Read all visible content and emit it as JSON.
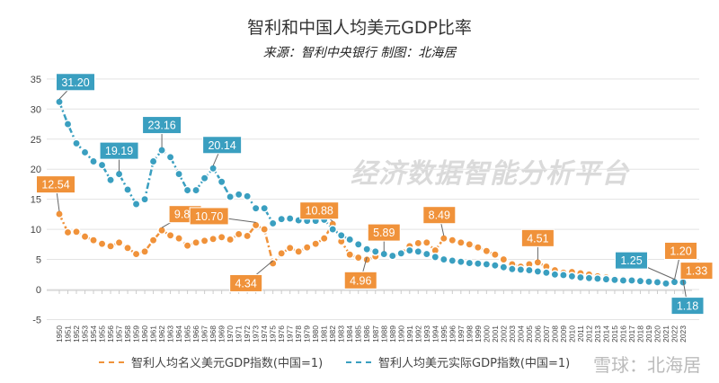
{
  "chart_data": {
    "type": "line",
    "title": "智利和中国人均美元GDP比率",
    "subtitle": "来源：智利中央银行 制图：北海居",
    "xlabel": "",
    "ylabel": "",
    "ylim": [
      -5,
      35
    ],
    "yticks": [
      -5,
      0,
      5,
      10,
      15,
      20,
      25,
      30,
      35
    ],
    "grid": true,
    "legend_position": "bottom",
    "x": [
      1950,
      1951,
      1952,
      1953,
      1954,
      1955,
      1956,
      1957,
      1958,
      1959,
      1960,
      1961,
      1962,
      1963,
      1964,
      1965,
      1966,
      1967,
      1968,
      1969,
      1970,
      1971,
      1972,
      1973,
      1974,
      1975,
      1976,
      1977,
      1978,
      1979,
      1980,
      1981,
      1982,
      1983,
      1984,
      1985,
      1986,
      1987,
      1988,
      1989,
      1990,
      1991,
      1992,
      1993,
      1994,
      1995,
      1996,
      1997,
      1998,
      1999,
      2000,
      2001,
      2002,
      2003,
      2004,
      2005,
      2006,
      2007,
      2008,
      2009,
      2010,
      2011,
      2012,
      2013,
      2014,
      2015,
      2016,
      2017,
      2018,
      2019,
      2020,
      2021,
      2022,
      2023
    ],
    "series": [
      {
        "name": "智利人均名义美元GDP指数(中国=1)",
        "color": "#f0923a",
        "values": [
          12.54,
          9.5,
          9.6,
          8.8,
          8.2,
          7.6,
          7.2,
          7.8,
          6.9,
          5.9,
          6.3,
          8.2,
          9.84,
          9.0,
          8.5,
          7.3,
          7.8,
          8.1,
          8.4,
          8.7,
          8.3,
          9.2,
          8.9,
          10.7,
          10.0,
          4.34,
          6.0,
          6.9,
          6.3,
          7.0,
          7.6,
          8.5,
          10.88,
          8.0,
          5.8,
          5.3,
          4.96,
          5.5,
          5.89,
          5.5,
          6.0,
          7.2,
          7.7,
          7.8,
          6.5,
          8.49,
          8.2,
          7.8,
          7.5,
          7.0,
          6.4,
          5.8,
          5.0,
          4.2,
          3.8,
          4.2,
          4.51,
          3.8,
          3.2,
          2.8,
          2.9,
          2.7,
          2.5,
          2.2,
          2.0,
          1.8,
          1.7,
          1.6,
          1.5,
          1.4,
          1.3,
          1.1,
          1.2,
          1.33
        ]
      },
      {
        "name": "智利人均美元实际GDP指数(中国=1)",
        "color": "#3a9fc0",
        "values": [
          31.2,
          27.5,
          24.3,
          22.8,
          21.3,
          20.7,
          18.2,
          19.19,
          16.6,
          14.2,
          15.0,
          21.3,
          23.16,
          22.0,
          19.2,
          16.5,
          16.5,
          18.5,
          20.14,
          17.9,
          15.4,
          15.8,
          15.5,
          13.5,
          13.5,
          11.0,
          11.7,
          11.8,
          11.5,
          11.4,
          11.4,
          11.6,
          10.0,
          9.0,
          8.3,
          7.5,
          6.7,
          6.3,
          5.9,
          5.6,
          6.0,
          6.5,
          6.3,
          5.9,
          5.4,
          5.0,
          4.8,
          4.6,
          4.4,
          4.3,
          4.2,
          4.0,
          3.7,
          3.4,
          3.3,
          3.2,
          3.0,
          2.8,
          2.5,
          2.4,
          2.2,
          2.0,
          1.9,
          1.8,
          1.7,
          1.6,
          1.5,
          1.5,
          1.4,
          1.3,
          1.2,
          1.0,
          1.25,
          1.18
        ]
      }
    ],
    "annotations": [
      {
        "series": 1,
        "year": 1950,
        "label": "31.20"
      },
      {
        "series": 0,
        "year": 1950,
        "label": "12.54"
      },
      {
        "series": 1,
        "year": 1957,
        "label": "19.19"
      },
      {
        "series": 1,
        "year": 1962,
        "label": "23.16"
      },
      {
        "series": 1,
        "year": 1968,
        "label": "20.14"
      },
      {
        "series": 0,
        "year": 1962,
        "label": "9.84"
      },
      {
        "series": 0,
        "year": 1973,
        "label": "10.70"
      },
      {
        "series": 0,
        "year": 1975,
        "label": "4.34"
      },
      {
        "series": 0,
        "year": 1982,
        "label": "10.88"
      },
      {
        "series": 0,
        "year": 1986,
        "label": "4.96"
      },
      {
        "series": 0,
        "year": 1988,
        "label": "5.89"
      },
      {
        "series": 0,
        "year": 1995,
        "label": "8.49"
      },
      {
        "series": 0,
        "year": 2006,
        "label": "4.51"
      },
      {
        "series": 1,
        "year": 2022,
        "label": "1.25"
      },
      {
        "series": 0,
        "year": 2022,
        "label": "1.20"
      },
      {
        "series": 0,
        "year": 2023,
        "label": "1.33"
      },
      {
        "series": 1,
        "year": 2023,
        "label": "1.18"
      }
    ]
  },
  "watermarks": [
    "经济数据智能分析平台",
    "雪球：北海居"
  ]
}
